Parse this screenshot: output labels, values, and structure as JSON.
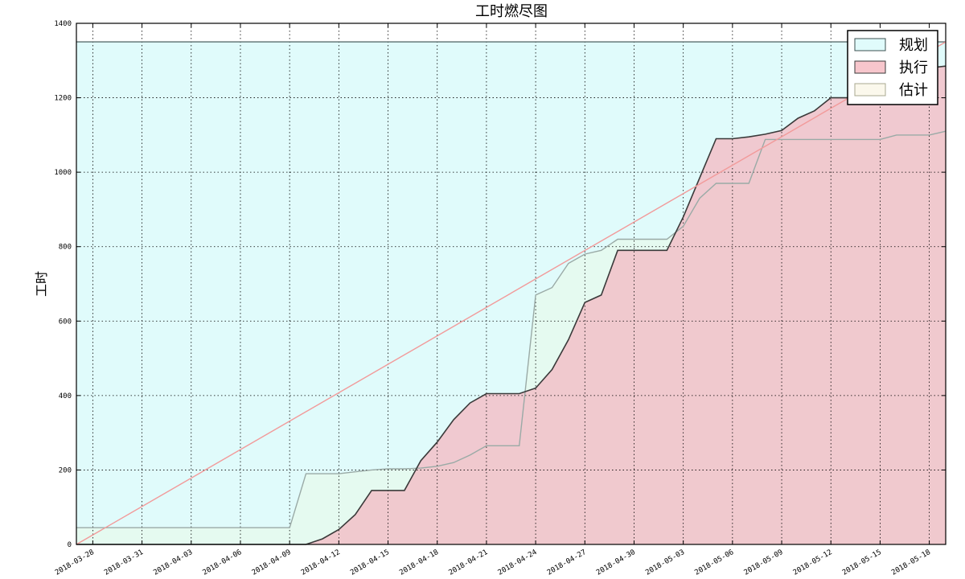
{
  "chart_data": {
    "type": "area",
    "title": "工时燃尽图",
    "xlabel": "",
    "ylabel": "工时",
    "ylim": [
      0,
      1400
    ],
    "xlim": [
      "2018-03-27",
      "2018-05-19"
    ],
    "grid": true,
    "legend_position": "top-right",
    "x_ticks": [
      "2018-03-28",
      "2018-03-31",
      "2018-04-03",
      "2018-04-06",
      "2018-04-09",
      "2018-04-12",
      "2018-04-15",
      "2018-04-18",
      "2018-04-21",
      "2018-04-24",
      "2018-04-27",
      "2018-04-30",
      "2018-05-03",
      "2018-05-06",
      "2018-05-09",
      "2018-05-12",
      "2018-05-15",
      "2018-05-18"
    ],
    "y_ticks": [
      0,
      200,
      400,
      600,
      800,
      1000,
      1200,
      1400
    ],
    "series": [
      {
        "name": "规划",
        "color": "#e0fbfb",
        "line_color": "#5a6e6e",
        "points": [
          [
            "2018-03-27",
            1350
          ],
          [
            "2018-05-19",
            1350
          ]
        ]
      },
      {
        "name": "执行",
        "color": "#f2c0c8",
        "line_color": "#3a3a3a",
        "points": [
          [
            "2018-03-27",
            0
          ],
          [
            "2018-04-10",
            0
          ],
          [
            "2018-04-11",
            15
          ],
          [
            "2018-04-12",
            40
          ],
          [
            "2018-04-13",
            80
          ],
          [
            "2018-04-14",
            145
          ],
          [
            "2018-04-15",
            145
          ],
          [
            "2018-04-16",
            145
          ],
          [
            "2018-04-17",
            225
          ],
          [
            "2018-04-18",
            275
          ],
          [
            "2018-04-19",
            335
          ],
          [
            "2018-04-20",
            380
          ],
          [
            "2018-04-21",
            405
          ],
          [
            "2018-04-22",
            405
          ],
          [
            "2018-04-23",
            405
          ],
          [
            "2018-04-24",
            420
          ],
          [
            "2018-04-25",
            470
          ],
          [
            "2018-04-26",
            550
          ],
          [
            "2018-04-27",
            650
          ],
          [
            "2018-04-28",
            670
          ],
          [
            "2018-04-29",
            790
          ],
          [
            "2018-04-30",
            790
          ],
          [
            "2018-05-01",
            790
          ],
          [
            "2018-05-02",
            790
          ],
          [
            "2018-05-03",
            880
          ],
          [
            "2018-05-04",
            985
          ],
          [
            "2018-05-05",
            1090
          ],
          [
            "2018-05-06",
            1090
          ],
          [
            "2018-05-07",
            1095
          ],
          [
            "2018-05-08",
            1102
          ],
          [
            "2018-05-09",
            1112
          ],
          [
            "2018-05-10",
            1145
          ],
          [
            "2018-05-11",
            1165
          ],
          [
            "2018-05-12",
            1200
          ],
          [
            "2018-05-13",
            1200
          ],
          [
            "2018-05-14",
            1220
          ],
          [
            "2018-05-15",
            1230
          ],
          [
            "2018-05-16",
            1250
          ],
          [
            "2018-05-17",
            1270
          ],
          [
            "2018-05-18",
            1280
          ],
          [
            "2018-05-19",
            1285
          ]
        ]
      },
      {
        "name": "估计",
        "color": "#e6f9ee",
        "line_color": "#9aaaa6",
        "points": [
          [
            "2018-03-27",
            45
          ],
          [
            "2018-04-09",
            45
          ],
          [
            "2018-04-10",
            190
          ],
          [
            "2018-04-11",
            190
          ],
          [
            "2018-04-12",
            190
          ],
          [
            "2018-04-13",
            195
          ],
          [
            "2018-04-14",
            200
          ],
          [
            "2018-04-15",
            203
          ],
          [
            "2018-04-16",
            203
          ],
          [
            "2018-04-17",
            205
          ],
          [
            "2018-04-18",
            210
          ],
          [
            "2018-04-19",
            220
          ],
          [
            "2018-04-20",
            240
          ],
          [
            "2018-04-21",
            265
          ],
          [
            "2018-04-22",
            265
          ],
          [
            "2018-04-23",
            265
          ],
          [
            "2018-04-24",
            670
          ],
          [
            "2018-04-25",
            690
          ],
          [
            "2018-04-26",
            755
          ],
          [
            "2018-04-27",
            780
          ],
          [
            "2018-04-28",
            790
          ],
          [
            "2018-04-29",
            820
          ],
          [
            "2018-04-30",
            820
          ],
          [
            "2018-05-01",
            820
          ],
          [
            "2018-05-02",
            820
          ],
          [
            "2018-05-03",
            855
          ],
          [
            "2018-05-04",
            930
          ],
          [
            "2018-05-05",
            970
          ],
          [
            "2018-05-06",
            970
          ],
          [
            "2018-05-07",
            970
          ],
          [
            "2018-05-08",
            1088
          ],
          [
            "2018-05-09",
            1088
          ],
          [
            "2018-05-10",
            1088
          ],
          [
            "2018-05-11",
            1088
          ],
          [
            "2018-05-12",
            1088
          ],
          [
            "2018-05-13",
            1088
          ],
          [
            "2018-05-14",
            1088
          ],
          [
            "2018-05-15",
            1088
          ],
          [
            "2018-05-16",
            1100
          ],
          [
            "2018-05-17",
            1100
          ],
          [
            "2018-05-18",
            1100
          ],
          [
            "2018-05-19",
            1110
          ]
        ]
      }
    ],
    "ideal_line": {
      "color": "#f29a9a",
      "points": [
        [
          "2018-03-27",
          0
        ],
        [
          "2018-05-19",
          1350
        ]
      ]
    }
  }
}
